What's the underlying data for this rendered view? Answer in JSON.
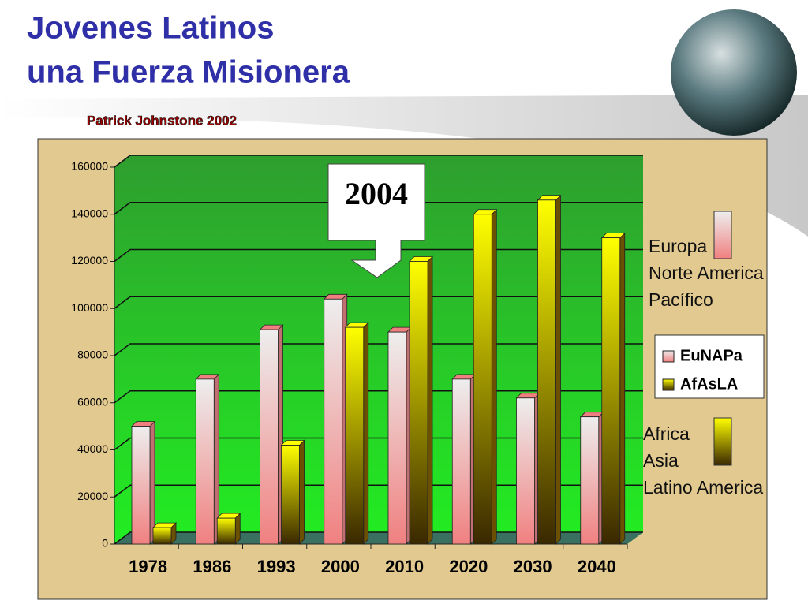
{
  "chart_data": {
    "type": "bar",
    "title": [
      "Jovenes Latinos",
      "una Fuerza Misionera"
    ],
    "subtitle": "Patrick Johnstone  2002",
    "annotation": "2004",
    "categories": [
      "1978",
      "1986",
      "1993",
      "2000",
      "2010",
      "2020",
      "2030",
      "2040"
    ],
    "series": [
      {
        "name": "EuNAPa",
        "color": "#f08080",
        "values": [
          50000,
          70000,
          91000,
          104000,
          90000,
          70000,
          62000,
          54000
        ]
      },
      {
        "name": "AfAsLA",
        "color": "#ffff00",
        "values": [
          7000,
          11000,
          42000,
          92000,
          120000,
          140000,
          146000,
          130000
        ]
      }
    ],
    "group_labels": [
      [
        "Europa",
        "Norte America",
        "Pacífico"
      ],
      [
        "Africa",
        "Asia",
        "Latino America"
      ]
    ],
    "ylim": [
      0,
      160000
    ],
    "yticks": [
      0,
      20000,
      40000,
      60000,
      80000,
      100000,
      120000,
      140000,
      160000
    ],
    "grid": true
  }
}
